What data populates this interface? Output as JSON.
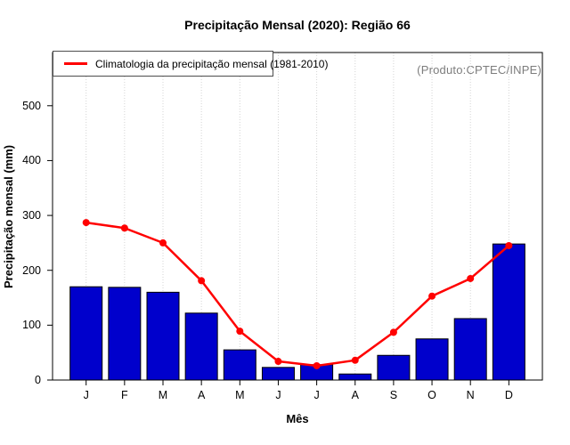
{
  "figure": {
    "title": "Precipitação Mensal (2020): Região 66",
    "annotation": "(Produto:CPTEC/INPE)"
  },
  "chart_data": {
    "type": "bar",
    "title": "Precipitação Mensal (2020): Região 66",
    "xlabel": "Mês",
    "ylabel": "Precipitação mensal (mm)",
    "categories": [
      "J",
      "F",
      "M",
      "A",
      "M",
      "J",
      "J",
      "A",
      "S",
      "O",
      "N",
      "D"
    ],
    "series": [
      {
        "name": "Precipitação mensal (2020)",
        "type": "bar",
        "color": "#0000CC",
        "values": [
          170,
          169,
          160,
          122,
          55,
          23,
          28,
          11,
          45,
          75,
          112,
          248
        ]
      },
      {
        "name": "Climatologia da precipitação mensal (1981-2010)",
        "type": "line",
        "color": "#FF0000",
        "values": [
          287,
          277,
          250,
          181,
          89,
          34,
          26,
          36,
          87,
          153,
          185,
          245
        ]
      }
    ],
    "yticks": [
      0,
      100,
      200,
      300,
      400,
      500
    ],
    "ylim": [
      0,
      597
    ],
    "grid": "vertical-dotted",
    "legend": {
      "label": "Climatologia da precipitação mensal (1981-2010)",
      "position": "topleft",
      "line_color": "#FF0000"
    },
    "annotation": "(Produto:CPTEC/INPE)",
    "colors": {
      "bar": "#0000CC",
      "bar_border": "#000000",
      "line": "#FF0000",
      "grid": "#D4D4D4",
      "axis": "#000000",
      "annotation_text": "#7D7D7D"
    }
  }
}
